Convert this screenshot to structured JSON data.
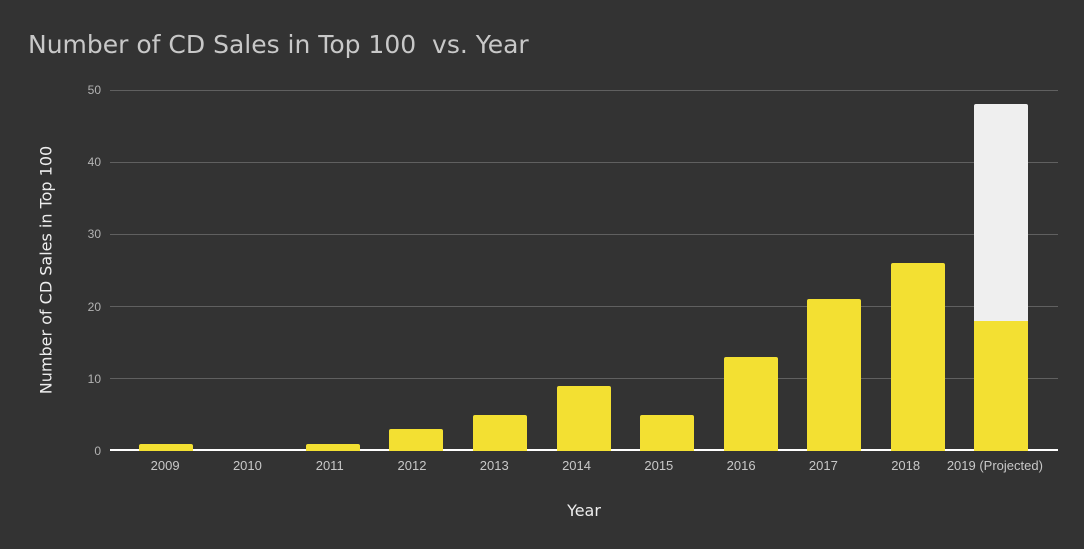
{
  "chart_data": {
    "type": "bar",
    "stacked": true,
    "title": "Number of CD Sales in Top 100  vs. Year",
    "xlabel": "Year",
    "ylabel": "Number of CD Sales in Top 100",
    "categories": [
      "2009",
      "2010",
      "2011",
      "2012",
      "2013",
      "2014",
      "2015",
      "2016",
      "2017",
      "2018",
      "2019 (Projected)"
    ],
    "series": [
      {
        "color": "#f3e032",
        "values": [
          1,
          0,
          1,
          3,
          5,
          9,
          5,
          13,
          21,
          26,
          18
        ]
      },
      {
        "color": "#efefef",
        "values": [
          0,
          0,
          0,
          0,
          0,
          0,
          0,
          0,
          0,
          0,
          30
        ]
      }
    ],
    "totals": [
      1,
      0,
      1,
      3,
      5,
      9,
      5,
      13,
      21,
      26,
      48
    ],
    "ylim": [
      0,
      50
    ],
    "yticks": [
      0,
      10,
      20,
      30,
      40,
      50
    ],
    "grid": true,
    "legend": "none",
    "colors": {
      "background": "#333333",
      "gridline": "#606060",
      "axis_baseline": "#ffffff",
      "title_text": "#c8c8c8",
      "tick_text": "#b3b3b3",
      "axis_title_text": "#ededed"
    }
  }
}
